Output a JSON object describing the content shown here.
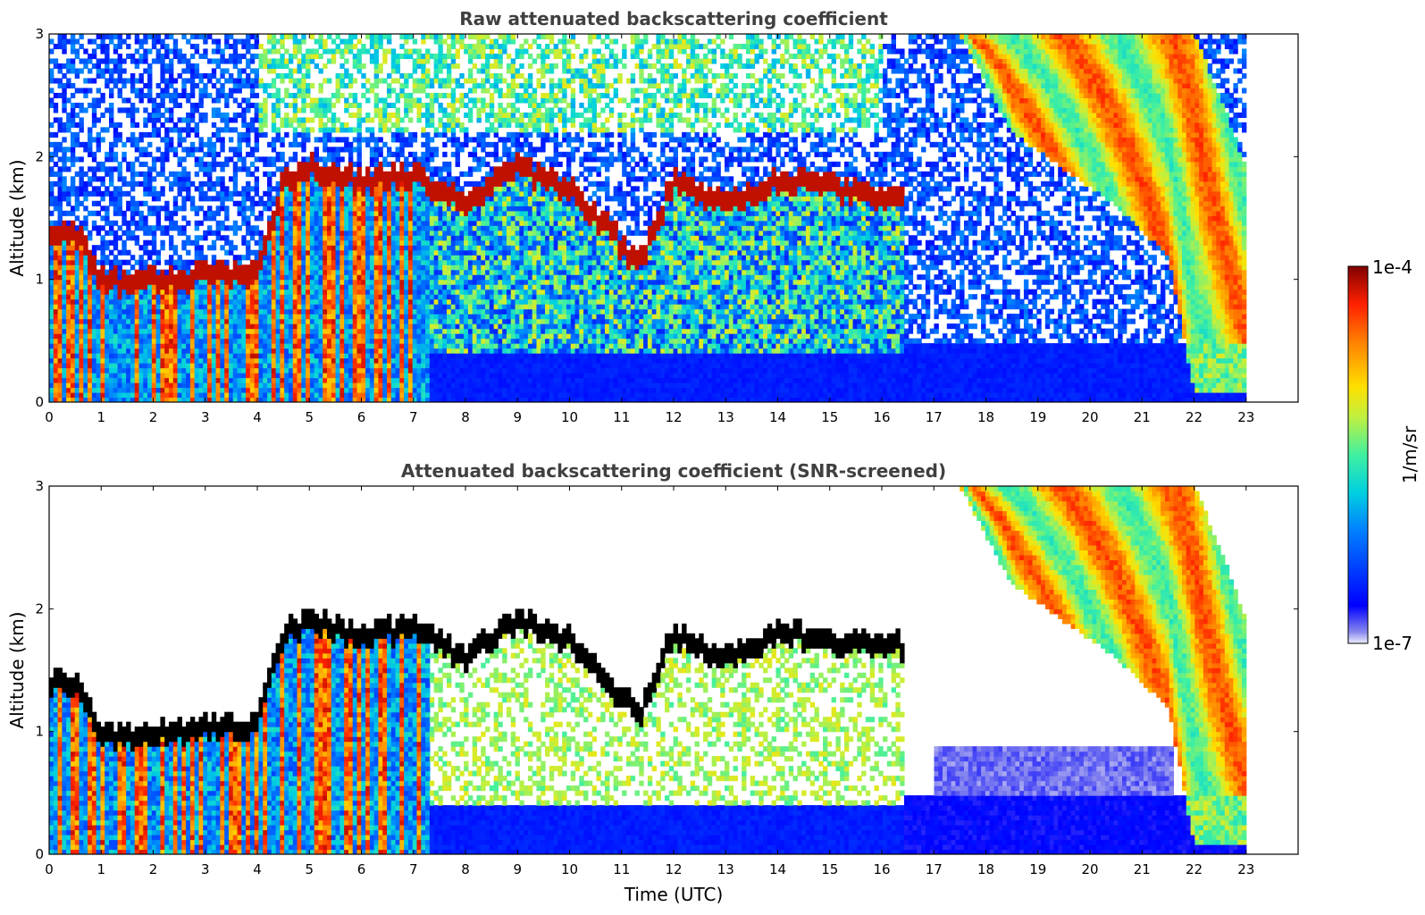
{
  "chart_data": [
    {
      "type": "heatmap",
      "title": "Raw attenuated backscattering coefficient",
      "xlabel": "",
      "ylabel": "Altitude (km)",
      "xlim": [
        0,
        24
      ],
      "ylim": [
        0,
        3
      ],
      "x_ticks": [
        "0",
        "1",
        "2",
        "3",
        "4",
        "5",
        "6",
        "7",
        "8",
        "9",
        "10",
        "11",
        "12",
        "13",
        "14",
        "15",
        "16",
        "17",
        "18",
        "19",
        "20",
        "21",
        "22",
        "23"
      ],
      "y_ticks": [
        "0",
        "1",
        "2",
        "3"
      ],
      "grid": false,
      "data_end_time": 23.0,
      "screened": false,
      "layers": [
        {
          "name": "cloud-top-layer",
          "x": [
            0.5,
            1.0,
            1.5,
            2.0,
            2.5,
            3.0,
            3.5,
            4.0,
            4.5,
            5.0,
            6.0,
            7.0,
            8.0,
            9.0,
            10.0,
            11.0,
            11.3,
            12.0,
            13.0,
            14.0,
            15.0,
            16.0
          ],
          "y": [
            1.4,
            1.0,
            0.95,
            1.0,
            1.0,
            1.05,
            1.05,
            1.05,
            1.8,
            1.9,
            1.8,
            1.85,
            1.6,
            1.9,
            1.75,
            1.3,
            1.1,
            1.8,
            1.6,
            1.8,
            1.75,
            1.7
          ]
        },
        {
          "name": "descending-cirrus",
          "x": [
            17.5,
            18.5,
            19.5,
            20.5,
            21.5,
            22.0,
            22.5,
            23.0
          ],
          "y_top": [
            3.0,
            3.0,
            3.0,
            3.0,
            3.0,
            3.0,
            2.5,
            1.9
          ],
          "y_bottom": [
            3.0,
            2.2,
            1.9,
            1.6,
            1.2,
            0.1,
            0.1,
            0.1
          ]
        }
      ]
    },
    {
      "type": "heatmap",
      "title": "Attenuated backscattering coefficient (SNR-screened)",
      "xlabel": "Time (UTC)",
      "ylabel": "Altitude (km)",
      "xlim": [
        0,
        24
      ],
      "ylim": [
        0,
        3
      ],
      "x_ticks": [
        "0",
        "1",
        "2",
        "3",
        "4",
        "5",
        "6",
        "7",
        "8",
        "9",
        "10",
        "11",
        "12",
        "13",
        "14",
        "15",
        "16",
        "17",
        "18",
        "19",
        "20",
        "21",
        "22",
        "23"
      ],
      "y_ticks": [
        "0",
        "1",
        "2",
        "3"
      ],
      "grid": false,
      "data_end_time": 23.0,
      "screened": true
    }
  ],
  "colorbar": {
    "label": "1/m/sr",
    "min_label": "1e-7",
    "max_label": "1e-4",
    "scale": "log",
    "colormap": "jet",
    "range": [
      1e-07,
      0.0001
    ]
  },
  "colors": {
    "axis": "#000000",
    "title": "#404040",
    "background": "#ffffff"
  }
}
